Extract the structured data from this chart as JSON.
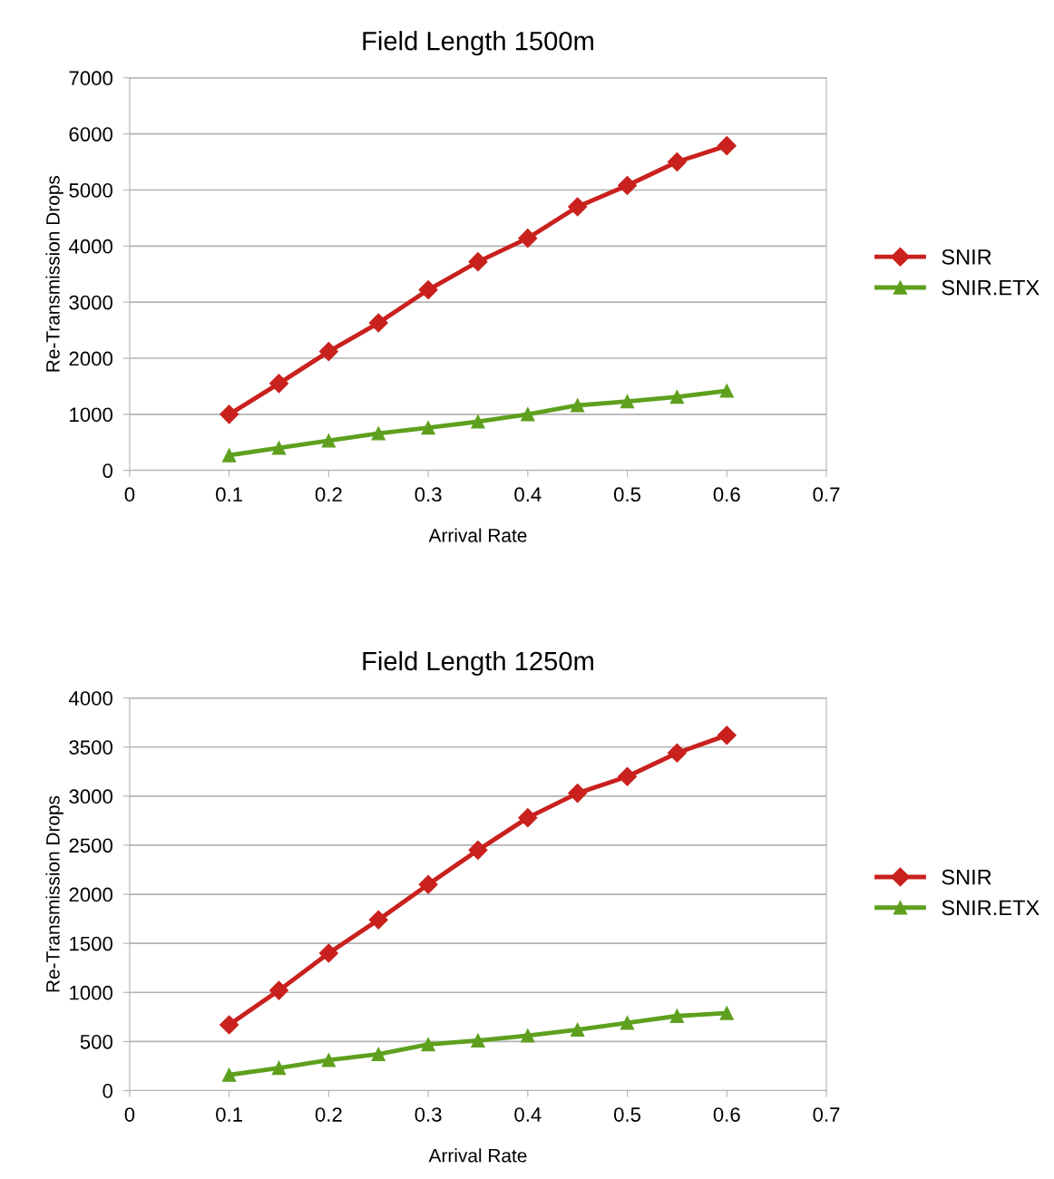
{
  "chart_data": [
    {
      "type": "line",
      "title": "Field Length 1500m",
      "xlabel": "Arrival Rate",
      "ylabel": "Re-Transmission Drops",
      "x": [
        0.1,
        0.15,
        0.2,
        0.25,
        0.3,
        0.35,
        0.4,
        0.45,
        0.5,
        0.55,
        0.6
      ],
      "series": [
        {
          "name": "SNIR",
          "color": "#c9211e",
          "marker": "diamond",
          "values": [
            1000,
            1550,
            2120,
            2630,
            3220,
            3720,
            4140,
            4700,
            5080,
            5500,
            5790
          ]
        },
        {
          "name": "SNIR.ETX",
          "color": "#5ea01e",
          "marker": "triangle",
          "values": [
            270,
            400,
            530,
            660,
            760,
            870,
            1000,
            1160,
            1230,
            1310,
            1420
          ]
        }
      ],
      "xlim": [
        0,
        0.7
      ],
      "xticks": [
        0,
        0.1,
        0.2,
        0.3,
        0.4,
        0.5,
        0.6,
        0.7
      ],
      "ylim": [
        0,
        7000
      ],
      "yticks": [
        0,
        1000,
        2000,
        3000,
        4000,
        5000,
        6000,
        7000
      ],
      "grid": "y",
      "legend": "right",
      "line_style": "solid"
    },
    {
      "type": "line",
      "title": "Field Length 1250m",
      "xlabel": "Arrival Rate",
      "ylabel": "Re-Transmission Drops",
      "x": [
        0.1,
        0.15,
        0.2,
        0.25,
        0.3,
        0.35,
        0.4,
        0.45,
        0.5,
        0.55,
        0.6
      ],
      "series": [
        {
          "name": "SNIR",
          "color": "#c9211e",
          "marker": "diamond",
          "values": [
            670,
            1020,
            1400,
            1740,
            2100,
            2450,
            2780,
            3030,
            3200,
            3440,
            3620
          ]
        },
        {
          "name": "SNIR.ETX",
          "color": "#5ea01e",
          "marker": "triangle",
          "values": [
            160,
            230,
            310,
            370,
            470,
            510,
            560,
            620,
            690,
            760,
            790
          ]
        }
      ],
      "xlim": [
        0,
        0.7
      ],
      "xticks": [
        0,
        0.1,
        0.2,
        0.3,
        0.4,
        0.5,
        0.6,
        0.7
      ],
      "ylim": [
        0,
        4000
      ],
      "yticks": [
        0,
        500,
        1000,
        1500,
        2000,
        2500,
        3000,
        3500,
        4000
      ],
      "grid": "y",
      "legend": "right",
      "line_style": "solid"
    }
  ]
}
